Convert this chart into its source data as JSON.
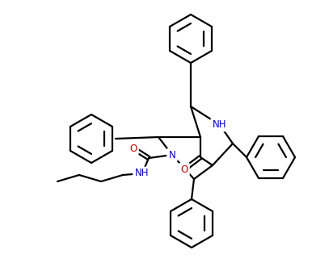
{
  "background_color": "#ffffff",
  "line_color": "#000000",
  "atom_colors": {
    "N": "#0000cd",
    "O": "#cc0000",
    "NH": "#0000cd"
  },
  "line_width": 1.6,
  "figsize": [
    3.86,
    3.46
  ],
  "dpi": 100
}
